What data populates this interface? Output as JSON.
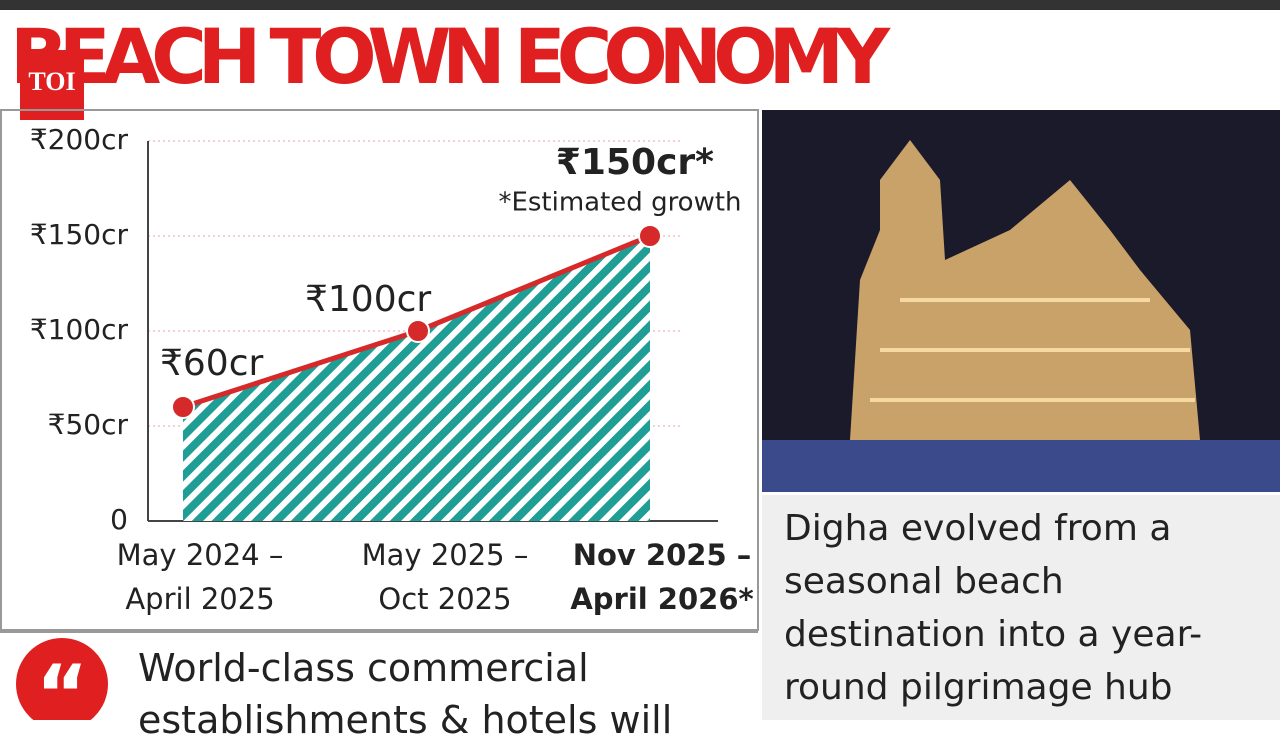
{
  "logo": "TOI",
  "title": "BEACH TOWN ECONOMY",
  "chart_data": {
    "type": "area",
    "categories": [
      "May 2024 – April 2025",
      "May 2025 – Oct 2025",
      "Nov 2025 – April 2026*"
    ],
    "values": [
      60,
      100,
      150
    ],
    "value_labels": [
      "₹60cr",
      "₹100cr",
      "₹150cr*"
    ],
    "annotation": "*Estimated growth",
    "color": "#d62a2a",
    "fill_color": "#1f9e96",
    "ylim": [
      0,
      200
    ],
    "yticks": [
      0,
      {
        "value": 50,
        "label": "₹50cr"
      },
      {
        "value": 100,
        "label": "₹100cr"
      },
      {
        "value": 150,
        "label": "₹150cr"
      },
      {
        "value": 200,
        "label": "₹200cr"
      }
    ],
    "grid": true
  },
  "quote": "World-class commercial establishments & hotels will",
  "caption": "Digha evolved from a seasonal beach destination into a year-round pilgrimage hub"
}
